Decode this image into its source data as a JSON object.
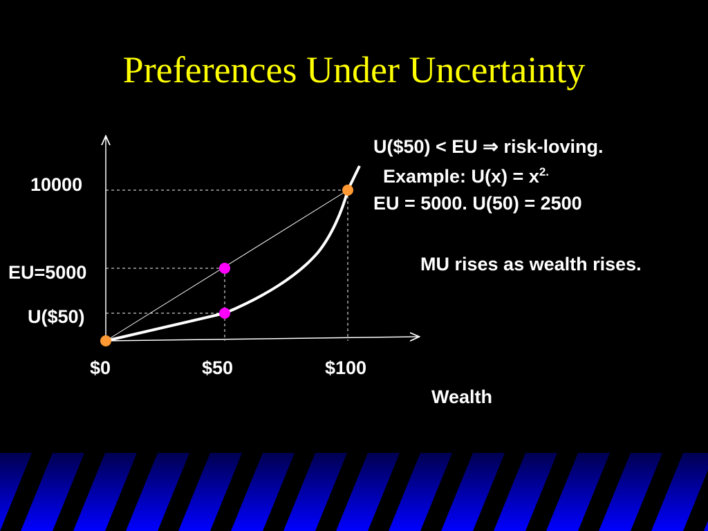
{
  "title": "Preferences Under Uncertainty",
  "y_labels": [
    "10000",
    "EU=5000",
    "U($50)"
  ],
  "x_labels": [
    "$0",
    "$50",
    "$100"
  ],
  "x_axis_title": "Wealth",
  "notes": {
    "line1": "U($50) < EU ⇒ risk-loving.",
    "line2": "Example: U(x) = x",
    "line2_sup": "2.",
    "line3": "EU = 5000.  U(50) = 2500",
    "mu": "MU rises as wealth rises."
  }
}
